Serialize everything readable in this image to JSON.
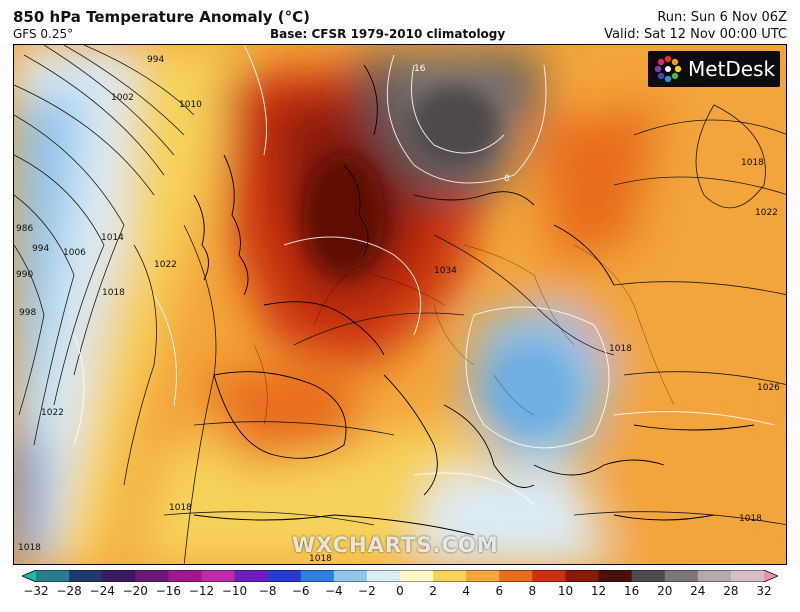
{
  "header": {
    "title": "850 hPa Temperature Anomaly (°C)",
    "model": "GFS 0.25°",
    "base": "Base: CFSR 1979-2010 climatology",
    "run": "Run: Sun 6 Nov 06Z",
    "valid": "Valid: Sat 12 Nov 00:00 UTC"
  },
  "logo": {
    "text": "MetDesk",
    "icon": "metdesk-star-logo"
  },
  "watermark": "WXCHARTS.COM",
  "map": {
    "region": "Europe and North Atlantic",
    "field": "850 hPa temperature anomaly",
    "overlay": "mean sea level pressure isobars (hPa)",
    "isobar_labels": [
      "994",
      "1002",
      "1010",
      "986",
      "990",
      "994",
      "998",
      "1006",
      "1014",
      "1018",
      "1022",
      "1022",
      "1034",
      "1018",
      "1022",
      "1018",
      "1026",
      "1018",
      "1018",
      "1018",
      "1018"
    ],
    "anomaly_labels": [
      "16",
      "8"
    ]
  },
  "colorbar": {
    "ticks": [
      "−32",
      "−28",
      "−24",
      "−20",
      "−16",
      "−12",
      "−10",
      "−8",
      "−6",
      "−4",
      "−2",
      "0",
      "2",
      "4",
      "6",
      "8",
      "10",
      "12",
      "16",
      "20",
      "24",
      "28",
      "32"
    ],
    "colors": [
      "#1fb89a",
      "#2a7a90",
      "#203a6e",
      "#3a1a60",
      "#6a1a78",
      "#a0188e",
      "#c02aa8",
      "#6a1ec0",
      "#2a3ad0",
      "#2e7ee0",
      "#8fc4ec",
      "#dcecf6",
      "#fff7c8",
      "#f6d25a",
      "#f3a43a",
      "#e86c1e",
      "#cc3010",
      "#8a1a08",
      "#4a1008",
      "#4e4a4a",
      "#7c7676",
      "#b4a8a8",
      "#d4bcc8",
      "#e890b0"
    ]
  }
}
